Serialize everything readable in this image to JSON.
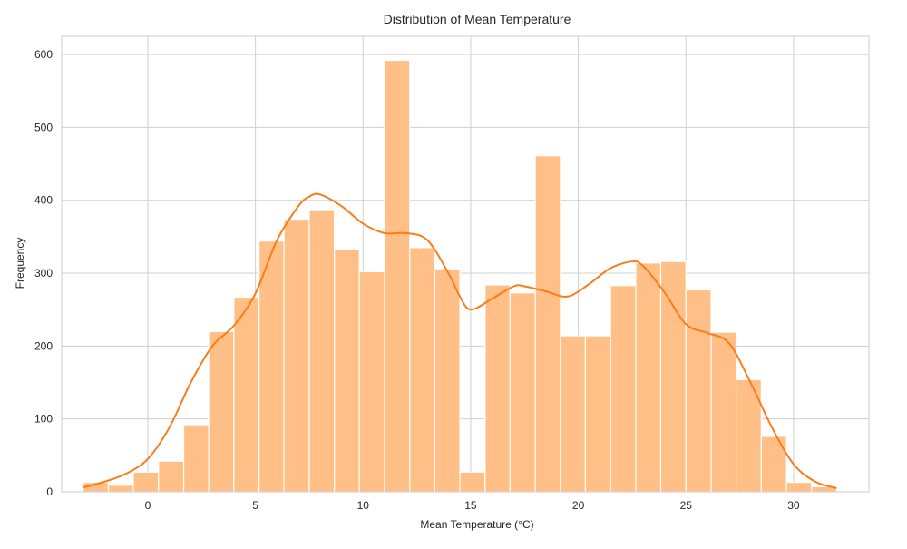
{
  "chart_data": {
    "type": "histogram",
    "title": "Distribution of Mean Temperature",
    "xlabel": "Mean Temperature (°C)",
    "ylabel": "Frequency",
    "xlim": [
      -4.0,
      33.5
    ],
    "ylim": [
      0,
      625
    ],
    "x_ticks": [
      0,
      5,
      10,
      15,
      20,
      25,
      30
    ],
    "y_ticks": [
      0,
      100,
      200,
      300,
      400,
      500,
      600
    ],
    "grid": true,
    "colors": {
      "bar_fill": "#ffbf87",
      "bar_edge": "#ffffff",
      "kde_line": "#f97d1b",
      "grid": "#d0d0d0",
      "frame": "#cccccc"
    },
    "bins": [
      {
        "x0": -3.0,
        "x1": -1.83,
        "count": 13
      },
      {
        "x0": -1.83,
        "x1": -0.67,
        "count": 9
      },
      {
        "x0": -0.67,
        "x1": 0.5,
        "count": 27
      },
      {
        "x0": 0.5,
        "x1": 1.67,
        "count": 42
      },
      {
        "x0": 1.67,
        "x1": 2.83,
        "count": 92
      },
      {
        "x0": 2.83,
        "x1": 4.0,
        "count": 220
      },
      {
        "x0": 4.0,
        "x1": 5.17,
        "count": 267
      },
      {
        "x0": 5.17,
        "x1": 6.33,
        "count": 344
      },
      {
        "x0": 6.33,
        "x1": 7.5,
        "count": 374
      },
      {
        "x0": 7.5,
        "x1": 8.67,
        "count": 387
      },
      {
        "x0": 8.67,
        "x1": 9.83,
        "count": 332
      },
      {
        "x0": 9.83,
        "x1": 11.0,
        "count": 302
      },
      {
        "x0": 11.0,
        "x1": 12.17,
        "count": 592
      },
      {
        "x0": 12.17,
        "x1": 13.33,
        "count": 335
      },
      {
        "x0": 13.33,
        "x1": 14.5,
        "count": 306
      },
      {
        "x0": 14.5,
        "x1": 15.67,
        "count": 27
      },
      {
        "x0": 15.67,
        "x1": 16.83,
        "count": 284
      },
      {
        "x0": 16.83,
        "x1": 18.0,
        "count": 273
      },
      {
        "x0": 18.0,
        "x1": 19.17,
        "count": 461
      },
      {
        "x0": 19.17,
        "x1": 20.33,
        "count": 214
      },
      {
        "x0": 20.33,
        "x1": 21.5,
        "count": 214
      },
      {
        "x0": 21.5,
        "x1": 22.67,
        "count": 283
      },
      {
        "x0": 22.67,
        "x1": 23.83,
        "count": 314
      },
      {
        "x0": 23.83,
        "x1": 25.0,
        "count": 316
      },
      {
        "x0": 25.0,
        "x1": 26.17,
        "count": 277
      },
      {
        "x0": 26.17,
        "x1": 27.33,
        "count": 219
      },
      {
        "x0": 27.33,
        "x1": 28.5,
        "count": 154
      },
      {
        "x0": 28.5,
        "x1": 29.67,
        "count": 76
      },
      {
        "x0": 29.67,
        "x1": 30.83,
        "count": 13
      },
      {
        "x0": 30.83,
        "x1": 32.0,
        "count": 7
      }
    ],
    "kde": {
      "x": [
        -3.0,
        -2.0,
        -1.0,
        0.0,
        1.0,
        2.0,
        3.0,
        4.0,
        5.0,
        6.0,
        7.0,
        7.5,
        8.0,
        9.0,
        10.0,
        11.0,
        12.0,
        13.0,
        14.0,
        14.5,
        15.0,
        16.0,
        17.0,
        17.5,
        18.5,
        19.5,
        20.5,
        21.5,
        22.5,
        23.0,
        24.0,
        25.0,
        26.0,
        27.0,
        28.0,
        29.0,
        30.0,
        31.0,
        32.0
      ],
      "y": [
        6,
        14,
        25,
        45,
        88,
        150,
        200,
        228,
        272,
        345,
        392,
        405,
        408,
        392,
        368,
        355,
        355,
        345,
        298,
        268,
        250,
        265,
        282,
        282,
        275,
        268,
        285,
        307,
        316,
        310,
        274,
        230,
        218,
        204,
        150,
        88,
        38,
        14,
        5
      ]
    }
  }
}
